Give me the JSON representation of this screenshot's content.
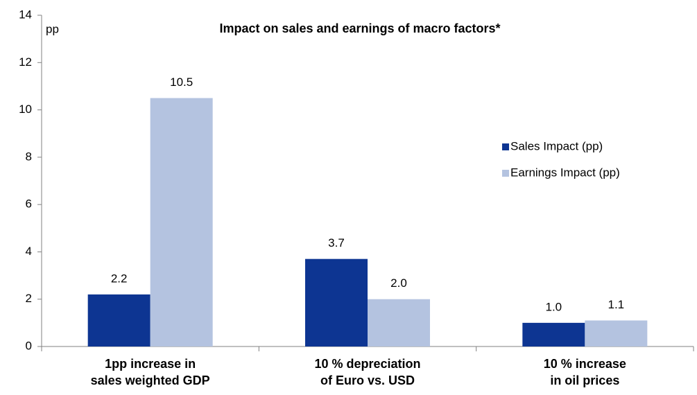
{
  "chart_data": {
    "type": "bar",
    "title": "Impact on sales and earnings of macro factors*",
    "y_label": "pp",
    "categories": [
      [
        "1pp increase in",
        "sales weighted GDP"
      ],
      [
        "10 % depreciation",
        "of Euro vs. USD"
      ],
      [
        "10 % increase",
        "in oil prices"
      ]
    ],
    "series": [
      {
        "name": "Sales Impact (pp)",
        "color": "#0d3592",
        "values": [
          2.2,
          3.7,
          1.0
        ],
        "value_labels": [
          "2.2",
          "3.7",
          "1.0"
        ]
      },
      {
        "name": "Earnings Impact (pp)",
        "color": "#b4c3e0",
        "values": [
          10.5,
          2.0,
          1.1
        ],
        "value_labels": [
          "10.5",
          "2.0",
          "1.1"
        ]
      }
    ],
    "ylim": [
      0,
      14
    ],
    "yticks": [
      0,
      2,
      4,
      6,
      8,
      10,
      12,
      14
    ],
    "grid": false,
    "legend": "right"
  }
}
